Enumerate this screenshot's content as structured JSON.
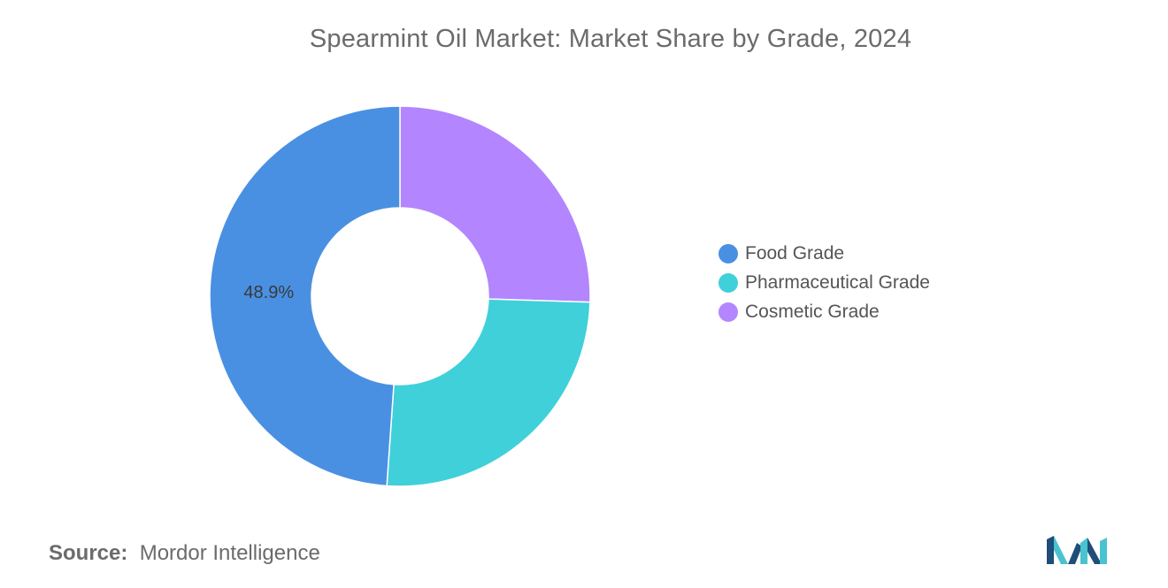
{
  "title": "Spearmint Oil Market: Market Share by Grade, 2024",
  "source": {
    "key": "Source:",
    "value": "Mordor Intelligence"
  },
  "logo_icon": "mordor-intelligence-logo-icon",
  "chart_data": {
    "type": "pie",
    "variant": "donut",
    "title": "Spearmint Oil Market: Market Share by Grade, 2024",
    "legend_position": "right",
    "categories": [
      "Food Grade",
      "Pharmaceutical Grade",
      "Cosmetic Grade"
    ],
    "values": [
      48.9,
      25.6,
      25.5
    ],
    "colors": [
      "#4a90e2",
      "#3fd0da",
      "#b385ff"
    ],
    "data_labels": [
      "48.9%",
      "",
      ""
    ],
    "unit": "%"
  }
}
